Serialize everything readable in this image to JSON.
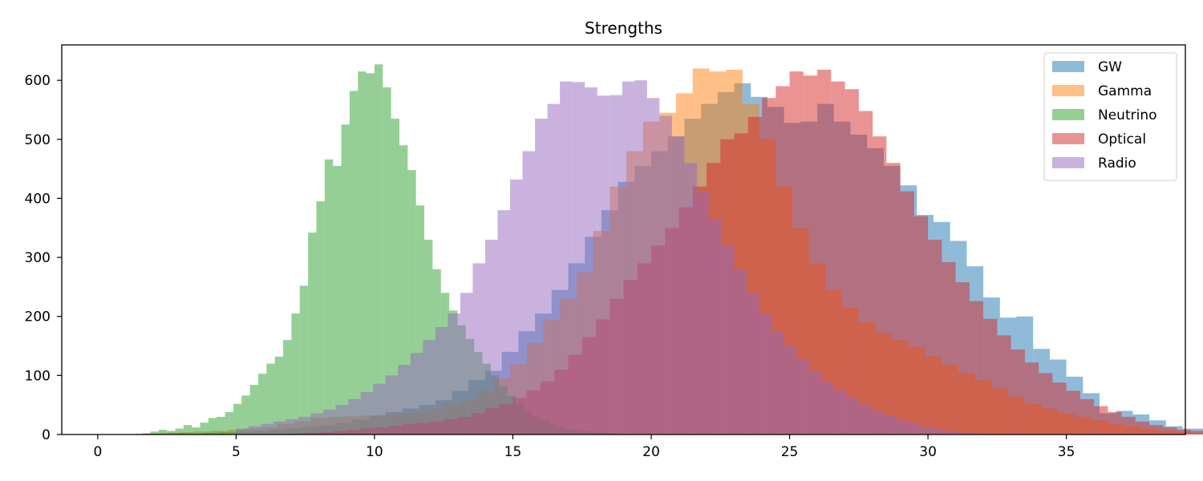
{
  "chart_data": {
    "type": "histogram",
    "title": "Strengths",
    "xlabel": "",
    "ylabel": "",
    "xlim": [
      -1.3,
      39.3
    ],
    "ylim": [
      0,
      660
    ],
    "xticks": [
      0,
      5,
      10,
      15,
      20,
      25,
      30,
      35
    ],
    "yticks": [
      0,
      100,
      200,
      300,
      400,
      500,
      600
    ],
    "grid": false,
    "legend_position": "top-right",
    "series": [
      {
        "name": "GW",
        "color": "#1f77b4",
        "opacity": 0.5,
        "x_start": 0.8,
        "bin_width": 0.6,
        "counts": [
          0,
          0,
          0,
          2,
          2,
          3,
          4,
          5,
          6,
          8,
          10,
          13,
          16,
          20,
          25,
          32,
          38,
          44,
          50,
          58,
          74,
          92,
          108,
          140,
          175,
          205,
          245,
          290,
          335,
          380,
          428,
          455,
          480,
          505,
          535,
          560,
          580,
          595,
          572,
          555,
          528,
          530,
          560,
          530,
          508,
          485,
          455,
          422,
          372,
          360,
          328,
          285,
          232,
          198,
          200,
          145,
          127,
          98,
          70,
          36,
          40,
          34,
          24,
          14,
          10,
          10,
          5,
          3,
          2,
          1
        ]
      },
      {
        "name": "Gamma",
        "color": "#ff7f0e",
        "opacity": 0.5,
        "x_start": 1.7,
        "bin_width": 0.6,
        "counts": [
          2,
          3,
          4,
          5,
          6,
          8,
          10,
          12,
          18,
          22,
          28,
          30,
          31,
          32,
          33,
          35,
          38,
          44,
          52,
          60,
          74,
          95,
          120,
          155,
          195,
          230,
          275,
          345,
          420,
          480,
          530,
          545,
          578,
          620,
          615,
          618,
          560,
          500,
          420,
          350,
          290,
          245,
          215,
          190,
          172,
          160,
          148,
          132,
          118,
          104,
          92,
          78,
          64,
          52,
          44,
          36,
          30,
          24,
          18,
          14,
          10,
          6,
          4,
          2
        ]
      },
      {
        "name": "Neutrino",
        "color": "#2ca02c",
        "opacity": 0.5,
        "x_start": 1.0,
        "bin_width": 0.3,
        "counts": [
          0,
          1,
          2,
          5,
          8,
          6,
          10,
          16,
          12,
          20,
          28,
          30,
          38,
          52,
          66,
          84,
          103,
          120,
          132,
          160,
          205,
          252,
          342,
          395,
          466,
          455,
          525,
          582,
          615,
          612,
          627,
          588,
          535,
          490,
          448,
          388,
          330,
          280,
          240,
          210,
          185,
          162,
          140,
          120,
          100,
          82,
          66,
          52,
          40,
          30,
          24,
          18,
          14,
          10,
          8,
          6,
          4,
          3,
          2,
          1
        ]
      },
      {
        "name": "Optical",
        "color": "#d62728",
        "opacity": 0.5,
        "x_start": 7.0,
        "bin_width": 0.5,
        "counts": [
          2,
          3,
          4,
          6,
          8,
          10,
          12,
          15,
          18,
          20,
          22,
          26,
          30,
          36,
          45,
          52,
          62,
          75,
          90,
          110,
          135,
          165,
          195,
          230,
          262,
          290,
          320,
          350,
          385,
          420,
          460,
          500,
          510,
          538,
          570,
          590,
          615,
          608,
          618,
          598,
          585,
          548,
          505,
          460,
          412,
          370,
          330,
          292,
          258,
          226,
          196,
          168,
          144,
          122,
          104,
          88,
          74,
          60,
          48,
          38,
          30,
          22,
          16,
          12,
          8,
          6,
          4,
          2,
          1
        ]
      },
      {
        "name": "Radio",
        "color": "#9467bd",
        "opacity": 0.5,
        "x_start": 5.0,
        "bin_width": 0.45,
        "counts": [
          10,
          14,
          18,
          22,
          26,
          30,
          36,
          42,
          50,
          60,
          72,
          86,
          100,
          118,
          138,
          160,
          182,
          205,
          240,
          290,
          330,
          380,
          432,
          480,
          535,
          560,
          598,
          597,
          588,
          574,
          575,
          598,
          600,
          570,
          540,
          505,
          460,
          410,
          365,
          320,
          280,
          240,
          205,
          175,
          150,
          128,
          108,
          90,
          75,
          62,
          50,
          40,
          32,
          24,
          18,
          12,
          8,
          5,
          3,
          2,
          1
        ]
      }
    ]
  }
}
